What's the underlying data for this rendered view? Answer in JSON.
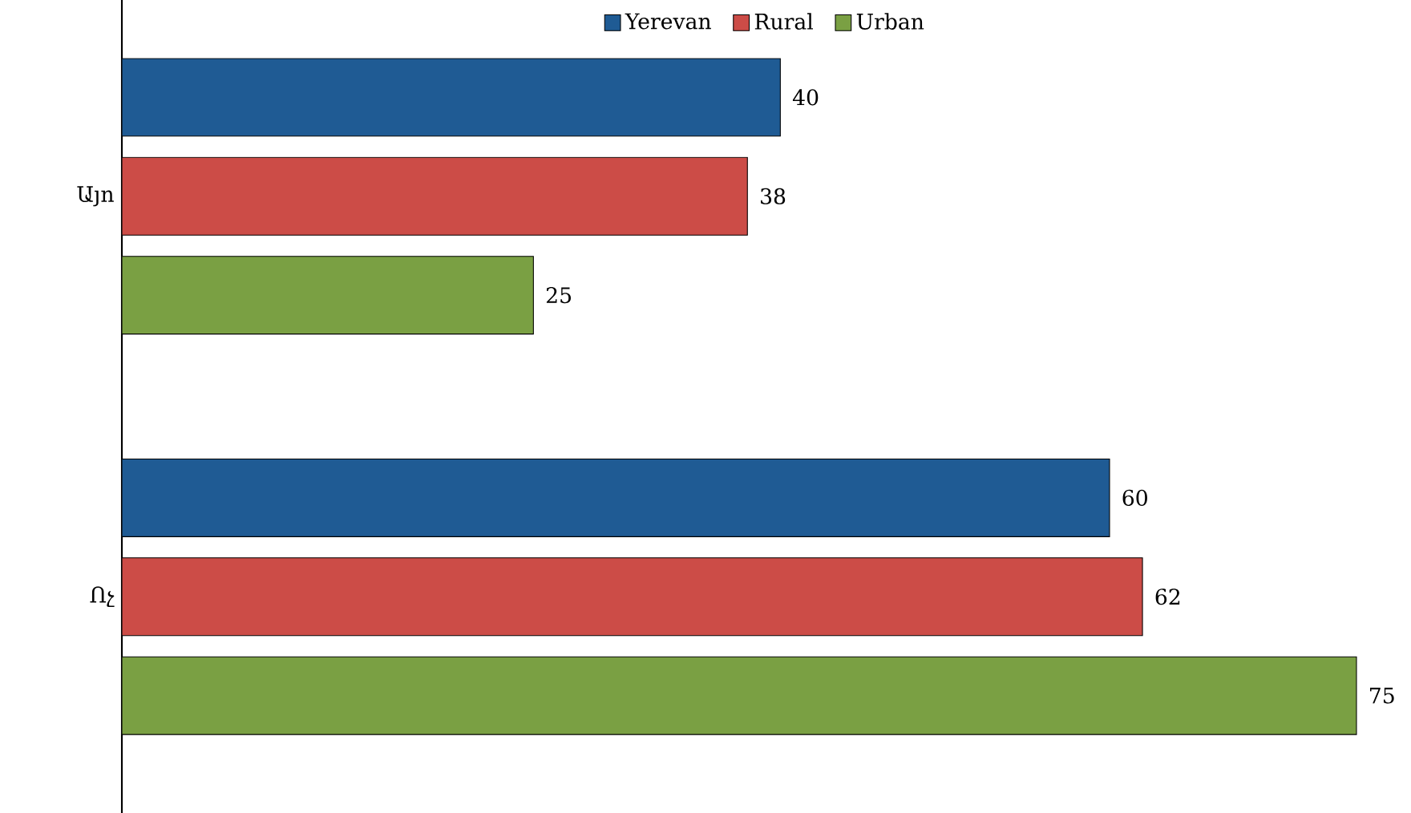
{
  "chart_data": {
    "type": "bar",
    "orientation": "horizontal",
    "categories": [
      "Այո",
      "Ոչ"
    ],
    "series": [
      {
        "name": "Yerevan",
        "color": "#1f5b94",
        "values": [
          40,
          60
        ]
      },
      {
        "name": "Rural",
        "color": "#cc4c47",
        "values": [
          38,
          62
        ]
      },
      {
        "name": "Urban",
        "color": "#7aa043",
        "values": [
          25,
          75
        ]
      }
    ],
    "data_labels": true,
    "legend": "top"
  }
}
